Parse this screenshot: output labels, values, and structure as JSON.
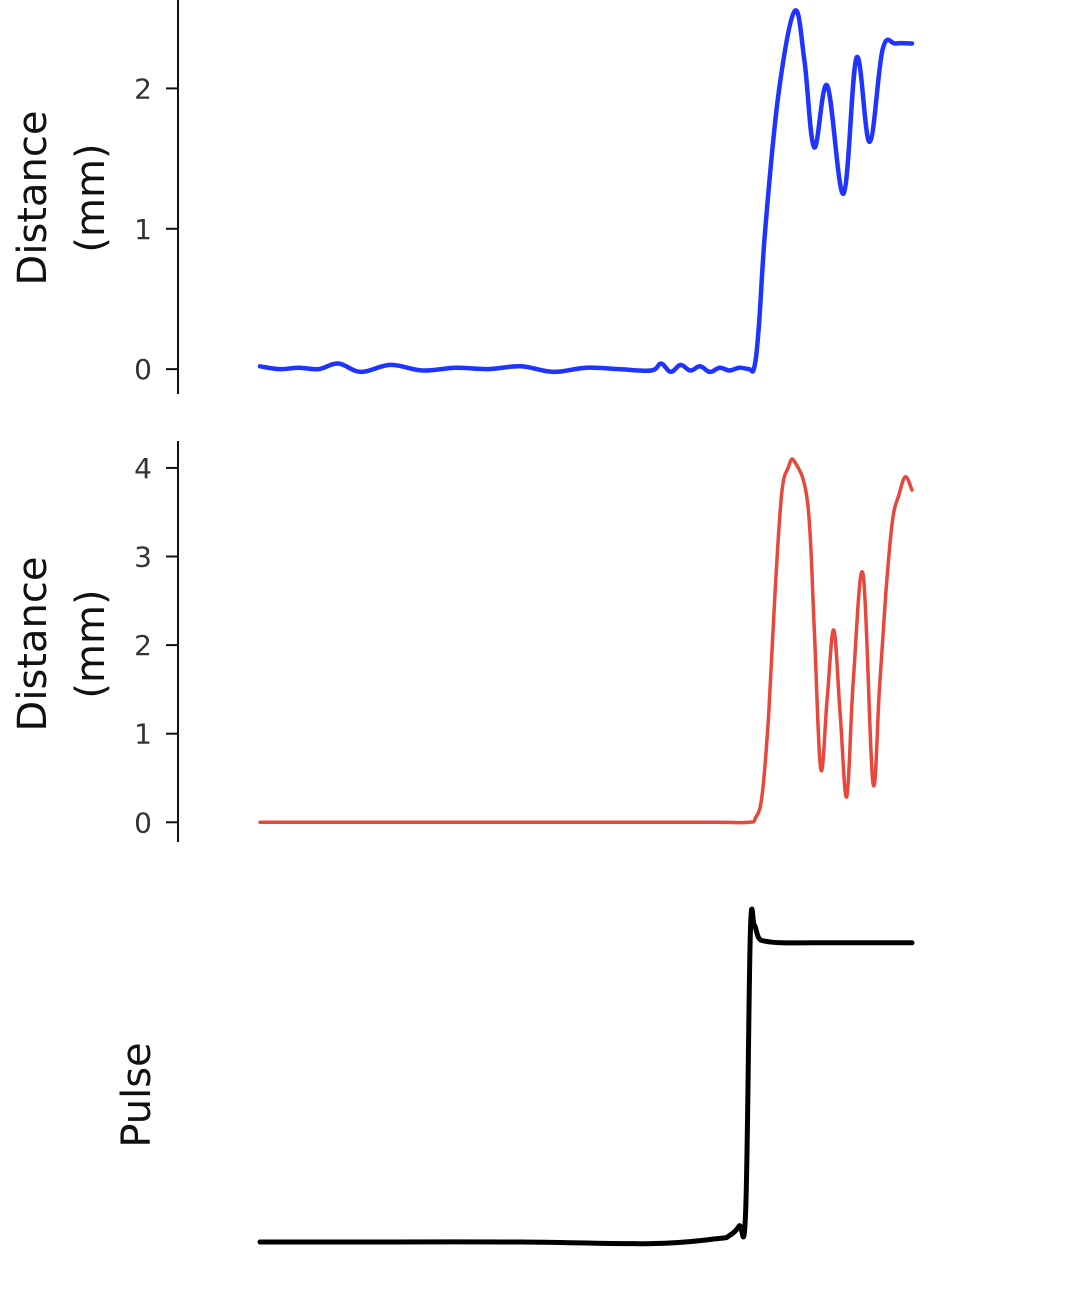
{
  "chart_data": [
    {
      "type": "line",
      "ylabel_line1": "Distance",
      "ylabel_line2": "(mm)",
      "yticks": [
        0,
        1,
        2
      ],
      "ytick_labels": [
        "0",
        "1",
        "2"
      ],
      "ylim": [
        -0.17,
        2.63
      ],
      "xlim": [
        0,
        1
      ],
      "color": "#1f35ff",
      "series": [
        {
          "x": [
            0,
            0.03,
            0.06,
            0.09,
            0.12,
            0.155,
            0.2,
            0.25,
            0.3,
            0.35,
            0.4,
            0.45,
            0.5,
            0.55,
            0.6,
            0.615,
            0.63,
            0.645,
            0.66,
            0.675,
            0.69,
            0.705,
            0.72,
            0.735,
            0.75,
            0.758,
            0.765,
            0.775,
            0.795,
            0.82,
            0.835,
            0.85,
            0.87,
            0.895,
            0.915,
            0.935,
            0.955,
            0.975,
            1.0
          ],
          "y": [
            0.02,
            0.0,
            0.01,
            0.0,
            0.04,
            -0.02,
            0.03,
            -0.01,
            0.01,
            0.0,
            0.02,
            -0.02,
            0.01,
            0.0,
            -0.01,
            0.04,
            -0.02,
            0.03,
            -0.01,
            0.02,
            -0.02,
            0.01,
            -0.01,
            0.01,
            0.0,
            0.01,
            0.3,
            1.0,
            1.95,
            2.55,
            2.2,
            1.58,
            2.02,
            1.25,
            2.22,
            1.62,
            2.28,
            2.32,
            2.32
          ]
        }
      ]
    },
    {
      "type": "line",
      "ylabel_line1": "Distance",
      "ylabel_line2": "(mm)",
      "yticks": [
        0,
        1,
        2,
        3,
        4
      ],
      "ytick_labels": [
        "0",
        "1",
        "2",
        "3",
        "4"
      ],
      "ylim": [
        -0.2,
        4.27
      ],
      "xlim": [
        0,
        1
      ],
      "color": "#e8473b",
      "series": [
        {
          "x": [
            0,
            0.1,
            0.2,
            0.3,
            0.4,
            0.5,
            0.6,
            0.7,
            0.75,
            0.76,
            0.77,
            0.78,
            0.79,
            0.8,
            0.81,
            0.82,
            0.84,
            0.85,
            0.86,
            0.87,
            0.88,
            0.89,
            0.9,
            0.91,
            0.925,
            0.94,
            0.95,
            0.96,
            0.97,
            0.98,
            0.99,
            1.0
          ],
          "y": [
            0,
            0,
            0,
            0,
            0,
            0,
            0,
            0,
            0,
            0.05,
            0.3,
            1.2,
            2.6,
            3.7,
            4.0,
            4.07,
            3.6,
            2.2,
            0.6,
            1.4,
            2.17,
            1.2,
            0.29,
            1.6,
            2.8,
            0.45,
            1.5,
            2.6,
            3.4,
            3.7,
            3.9,
            3.75
          ]
        }
      ]
    },
    {
      "type": "line",
      "ylabel": "Pulse",
      "ylim": [
        -0.05,
        1.05
      ],
      "xlim": [
        0,
        1
      ],
      "color": "#000000",
      "series": [
        {
          "x": [
            0,
            0.2,
            0.4,
            0.6,
            0.7,
            0.72,
            0.735,
            0.745,
            0.752,
            0.758,
            0.765,
            0.775,
            0.8,
            0.85,
            0.9,
            1.0
          ],
          "y": [
            0,
            0,
            0,
            -0.005,
            0.01,
            0.02,
            0.05,
            0.1,
            0.96,
            0.99,
            0.95,
            0.94,
            0.935,
            0.935,
            0.935,
            0.935
          ]
        }
      ]
    }
  ]
}
